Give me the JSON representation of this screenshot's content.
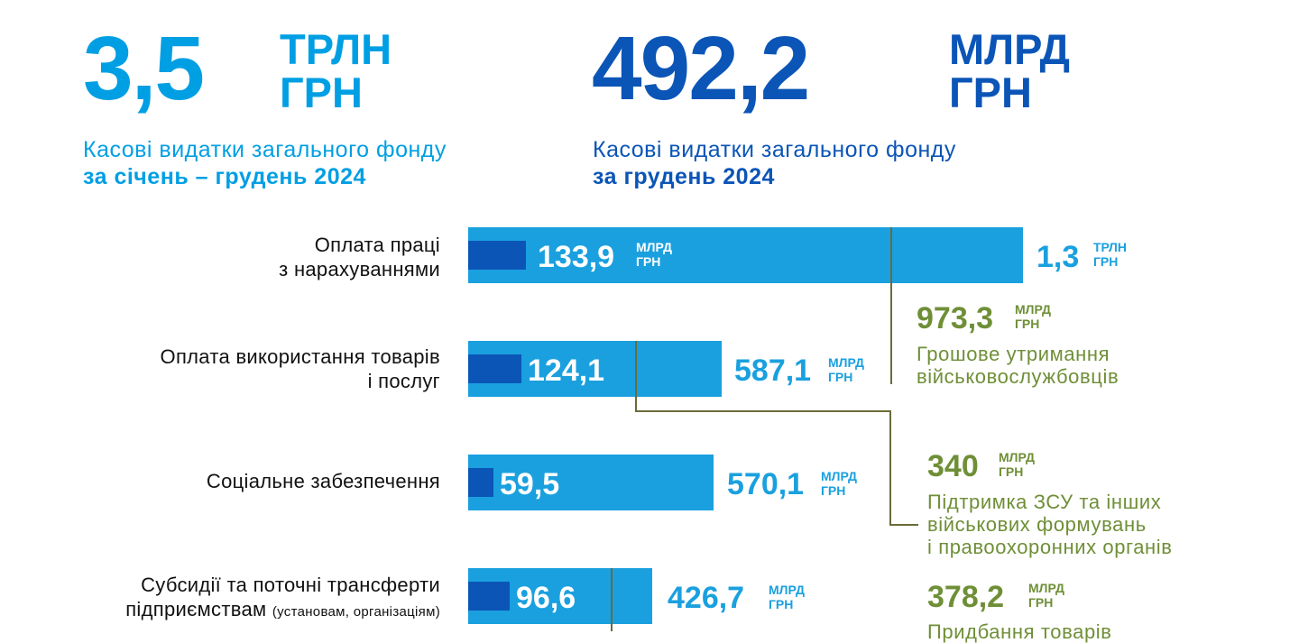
{
  "colors": {
    "light_blue": "#009fe3",
    "dark_blue": "#0b55b7",
    "bar": "#1aa0df",
    "bar_inner": "#0b55b7",
    "green": "#6f8f37",
    "connector": "#6b6b3a"
  },
  "header": {
    "annual": {
      "amount": "3,5",
      "unit_1": "ТРЛН",
      "unit_2": "ГРН",
      "caption_1": "Касові видатки загального фонду",
      "caption_2": "за січень – грудень 2024"
    },
    "monthly": {
      "amount": "492,2",
      "unit_1": "МЛРД",
      "unit_2": "ГРН",
      "caption_1": "Касові видатки загального фонду",
      "caption_2": "за грудень 2024"
    }
  },
  "chart_data": {
    "type": "bar",
    "orientation": "horizontal",
    "series": [
      {
        "name": "за грудень 2024",
        "values": [
          133.9,
          124.1,
          59.5,
          96.6
        ],
        "unit": "МЛРД ГРН"
      },
      {
        "name": "за січень – грудень 2024",
        "values": [
          1300,
          587.1,
          570.1,
          426.7
        ],
        "unit": "МЛРД ГРН"
      }
    ],
    "categories": [
      {
        "line_1": "Оплата праці",
        "line_2": "з нарахуваннями",
        "note": ""
      },
      {
        "line_1": "Оплата використання товарів",
        "line_2": "і послуг",
        "note": ""
      },
      {
        "line_1": "Соціальне забезпечення",
        "line_2": "",
        "note": ""
      },
      {
        "line_1": "Субсидії та поточні трансферти",
        "line_2": "підприємствам",
        "note": "(установам, організаціям)"
      }
    ],
    "inside_labels": [
      "133,9",
      "124,1",
      "59,5",
      "96,6"
    ],
    "inside_units": [
      [
        "МЛРД",
        "ГРН"
      ],
      [
        "",
        ""
      ],
      [
        "",
        ""
      ],
      [
        "",
        ""
      ]
    ],
    "outside_labels": [
      "1,3",
      "587,1",
      "570,1",
      "426,7"
    ],
    "outside_units": [
      [
        "ТРЛН",
        "ГРН"
      ],
      [
        "МЛРД",
        "ГРН"
      ],
      [
        "МЛРД",
        "ГРН"
      ],
      [
        "МЛРД",
        "ГРН"
      ]
    ],
    "annotations": [
      {
        "value": "973,3",
        "unit_1": "МЛРД",
        "unit_2": "ГРН",
        "text_1": "Грошове утримання",
        "text_2": "військовослужбовців",
        "text_3": ""
      },
      {
        "value": "340",
        "unit_1": "МЛРД",
        "unit_2": "ГРН",
        "text_1": "Підтримка ЗСУ та інших",
        "text_2": "військових формувань",
        "text_3": "і правоохоронних органів"
      },
      {
        "value": "378,2",
        "unit_1": "МЛРД",
        "unit_2": "ГРН",
        "text_1": "Придбання товарів",
        "text_2": "",
        "text_3": ""
      }
    ]
  }
}
